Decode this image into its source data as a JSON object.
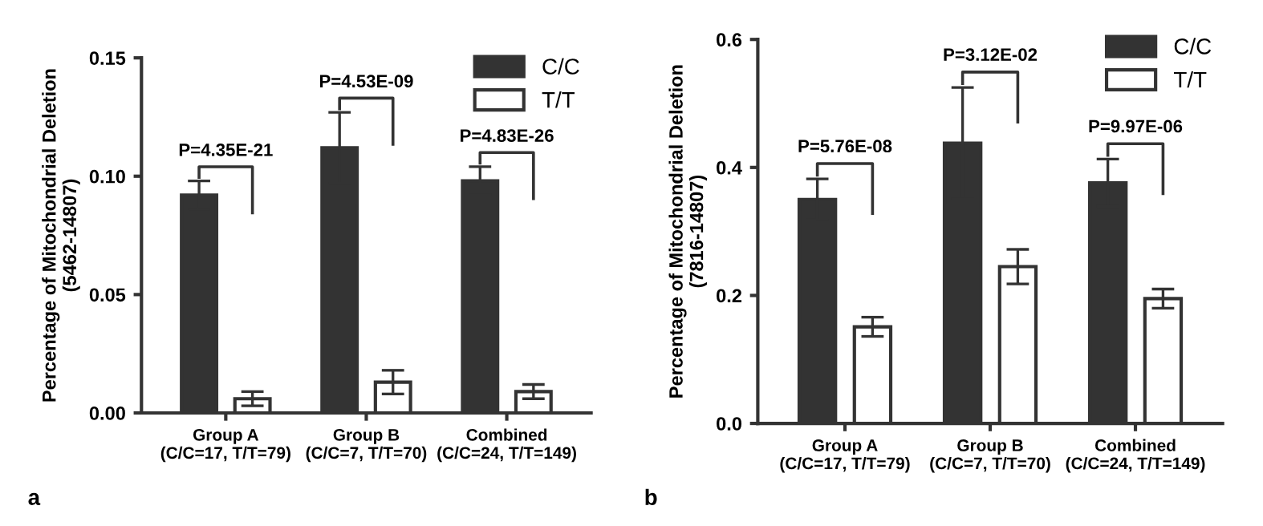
{
  "chart_data": [
    {
      "type": "bar",
      "ylabel": "Percentage of Mitochondrial Deletion\n(5462-14807)",
      "categories": [
        "Group A\n(C/C=17, T/T=79)",
        "Group B\n(C/C=7, T/T=70)",
        "Combined\n(C/C=24, T/T=149)"
      ],
      "series": [
        {
          "name": "C/C",
          "color": "#333333",
          "values": [
            0.092,
            0.112,
            0.098
          ],
          "errors": [
            0.006,
            0.015,
            0.006
          ]
        },
        {
          "name": "T/T",
          "color": "#ffffff",
          "values": [
            0.006,
            0.013,
            0.009
          ],
          "errors": [
            0.003,
            0.005,
            0.003
          ]
        }
      ],
      "ylim": [
        0,
        0.15
      ],
      "yticks": [
        {
          "value": 0,
          "label": "0.00"
        },
        {
          "value": 0.05,
          "label": "0.05"
        },
        {
          "value": 0.1,
          "label": "0.10"
        },
        {
          "value": 0.15,
          "label": "0.15"
        }
      ],
      "annotations": [
        "P=4.35E-21",
        "P=4.53E-09",
        "P=4.83E-26",
        "a"
      ],
      "legend": "top right",
      "grid": false
    },
    {
      "type": "bar",
      "ylabel": "Percentage of Mitochondrial Deletion\n(7816-14807)",
      "categories": [
        "Group A\n(C/C=17, T/T=79)",
        "Group B\n(C/C=7, T/T=70)",
        "Combined\n(C/C=24, T/T=149)"
      ],
      "series": [
        {
          "name": "C/C",
          "color": "#333333",
          "values": [
            0.35,
            0.438,
            0.376
          ],
          "errors": [
            0.032,
            0.087,
            0.037
          ]
        },
        {
          "name": "T/T",
          "color": "#ffffff",
          "values": [
            0.151,
            0.245,
            0.195
          ],
          "errors": [
            0.015,
            0.027,
            0.015
          ]
        }
      ],
      "ylim": [
        0,
        0.6
      ],
      "yticks": [
        {
          "value": 0,
          "label": "0.0"
        },
        0.2,
        0.4,
        0.6
      ],
      "annotations": [
        "P=5.76E-08",
        "P=3.12E-02",
        "P=9.97E-06",
        "b"
      ],
      "legend": "top right",
      "grid": false
    }
  ]
}
